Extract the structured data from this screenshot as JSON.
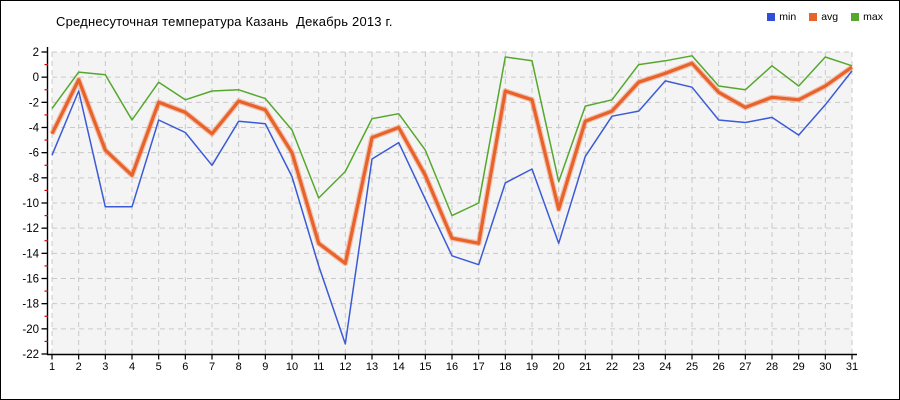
{
  "title": "Среднесуточная температура Казань  Декабрь 2013 г.",
  "legend": {
    "items": [
      {
        "label": "min",
        "color": "#2f4fd8"
      },
      {
        "label": "avg",
        "color": "#e8622a"
      },
      {
        "label": "max",
        "color": "#55a82d"
      }
    ]
  },
  "plot_style": {
    "bg": "#f4f4f4",
    "grid_color": "#c9c9c9",
    "axis_color": "#000000",
    "minor_tick_color": "#d40000",
    "label_color": "#000000"
  },
  "chart_data": {
    "type": "line",
    "title": "Среднесуточная температура Казань  Декабрь 2013 г.",
    "xlabel": "",
    "ylabel": "",
    "x": [
      1,
      2,
      3,
      4,
      5,
      6,
      7,
      8,
      9,
      10,
      11,
      12,
      13,
      14,
      15,
      16,
      17,
      18,
      19,
      20,
      21,
      22,
      23,
      24,
      25,
      26,
      27,
      28,
      29,
      30,
      31
    ],
    "ylim": [
      -22,
      2
    ],
    "ytick_step": 2,
    "grid": true,
    "legend_position": "top-right",
    "series": [
      {
        "name": "min",
        "color": "#3b5bd6",
        "width": 1.5,
        "values": [
          -6.2,
          -1.1,
          -10.3,
          -10.3,
          -3.4,
          -4.4,
          -7.0,
          -3.5,
          -3.7,
          -7.9,
          -15.0,
          -21.2,
          -6.5,
          -5.2,
          -9.7,
          -14.2,
          -14.9,
          -8.4,
          -7.3,
          -13.2,
          -6.3,
          -3.1,
          -2.7,
          -0.3,
          -0.8,
          -3.4,
          -3.6,
          -3.2,
          -4.6,
          -2.2,
          0.5
        ]
      },
      {
        "name": "avg",
        "color": "#e8622a",
        "width": 3.2,
        "values": [
          -4.5,
          -0.2,
          -5.8,
          -7.8,
          -2.0,
          -2.8,
          -4.5,
          -1.9,
          -2.6,
          -6.0,
          -13.2,
          -14.8,
          -4.8,
          -4.0,
          -7.8,
          -12.8,
          -13.2,
          -1.1,
          -1.8,
          -10.5,
          -3.5,
          -2.7,
          -0.4,
          0.3,
          1.1,
          -1.2,
          -2.4,
          -1.6,
          -1.8,
          -0.7,
          0.8
        ]
      },
      {
        "name": "max",
        "color": "#55a82d",
        "width": 1.5,
        "values": [
          -2.5,
          0.4,
          0.2,
          -3.4,
          -0.4,
          -1.8,
          -1.1,
          -1.0,
          -1.7,
          -4.2,
          -9.6,
          -7.5,
          -3.3,
          -2.9,
          -5.8,
          -11.0,
          -10.0,
          1.6,
          1.3,
          -8.3,
          -2.3,
          -1.8,
          1.0,
          1.3,
          1.7,
          -0.7,
          -1.0,
          0.9,
          -0.7,
          1.6,
          0.9
        ]
      }
    ]
  }
}
